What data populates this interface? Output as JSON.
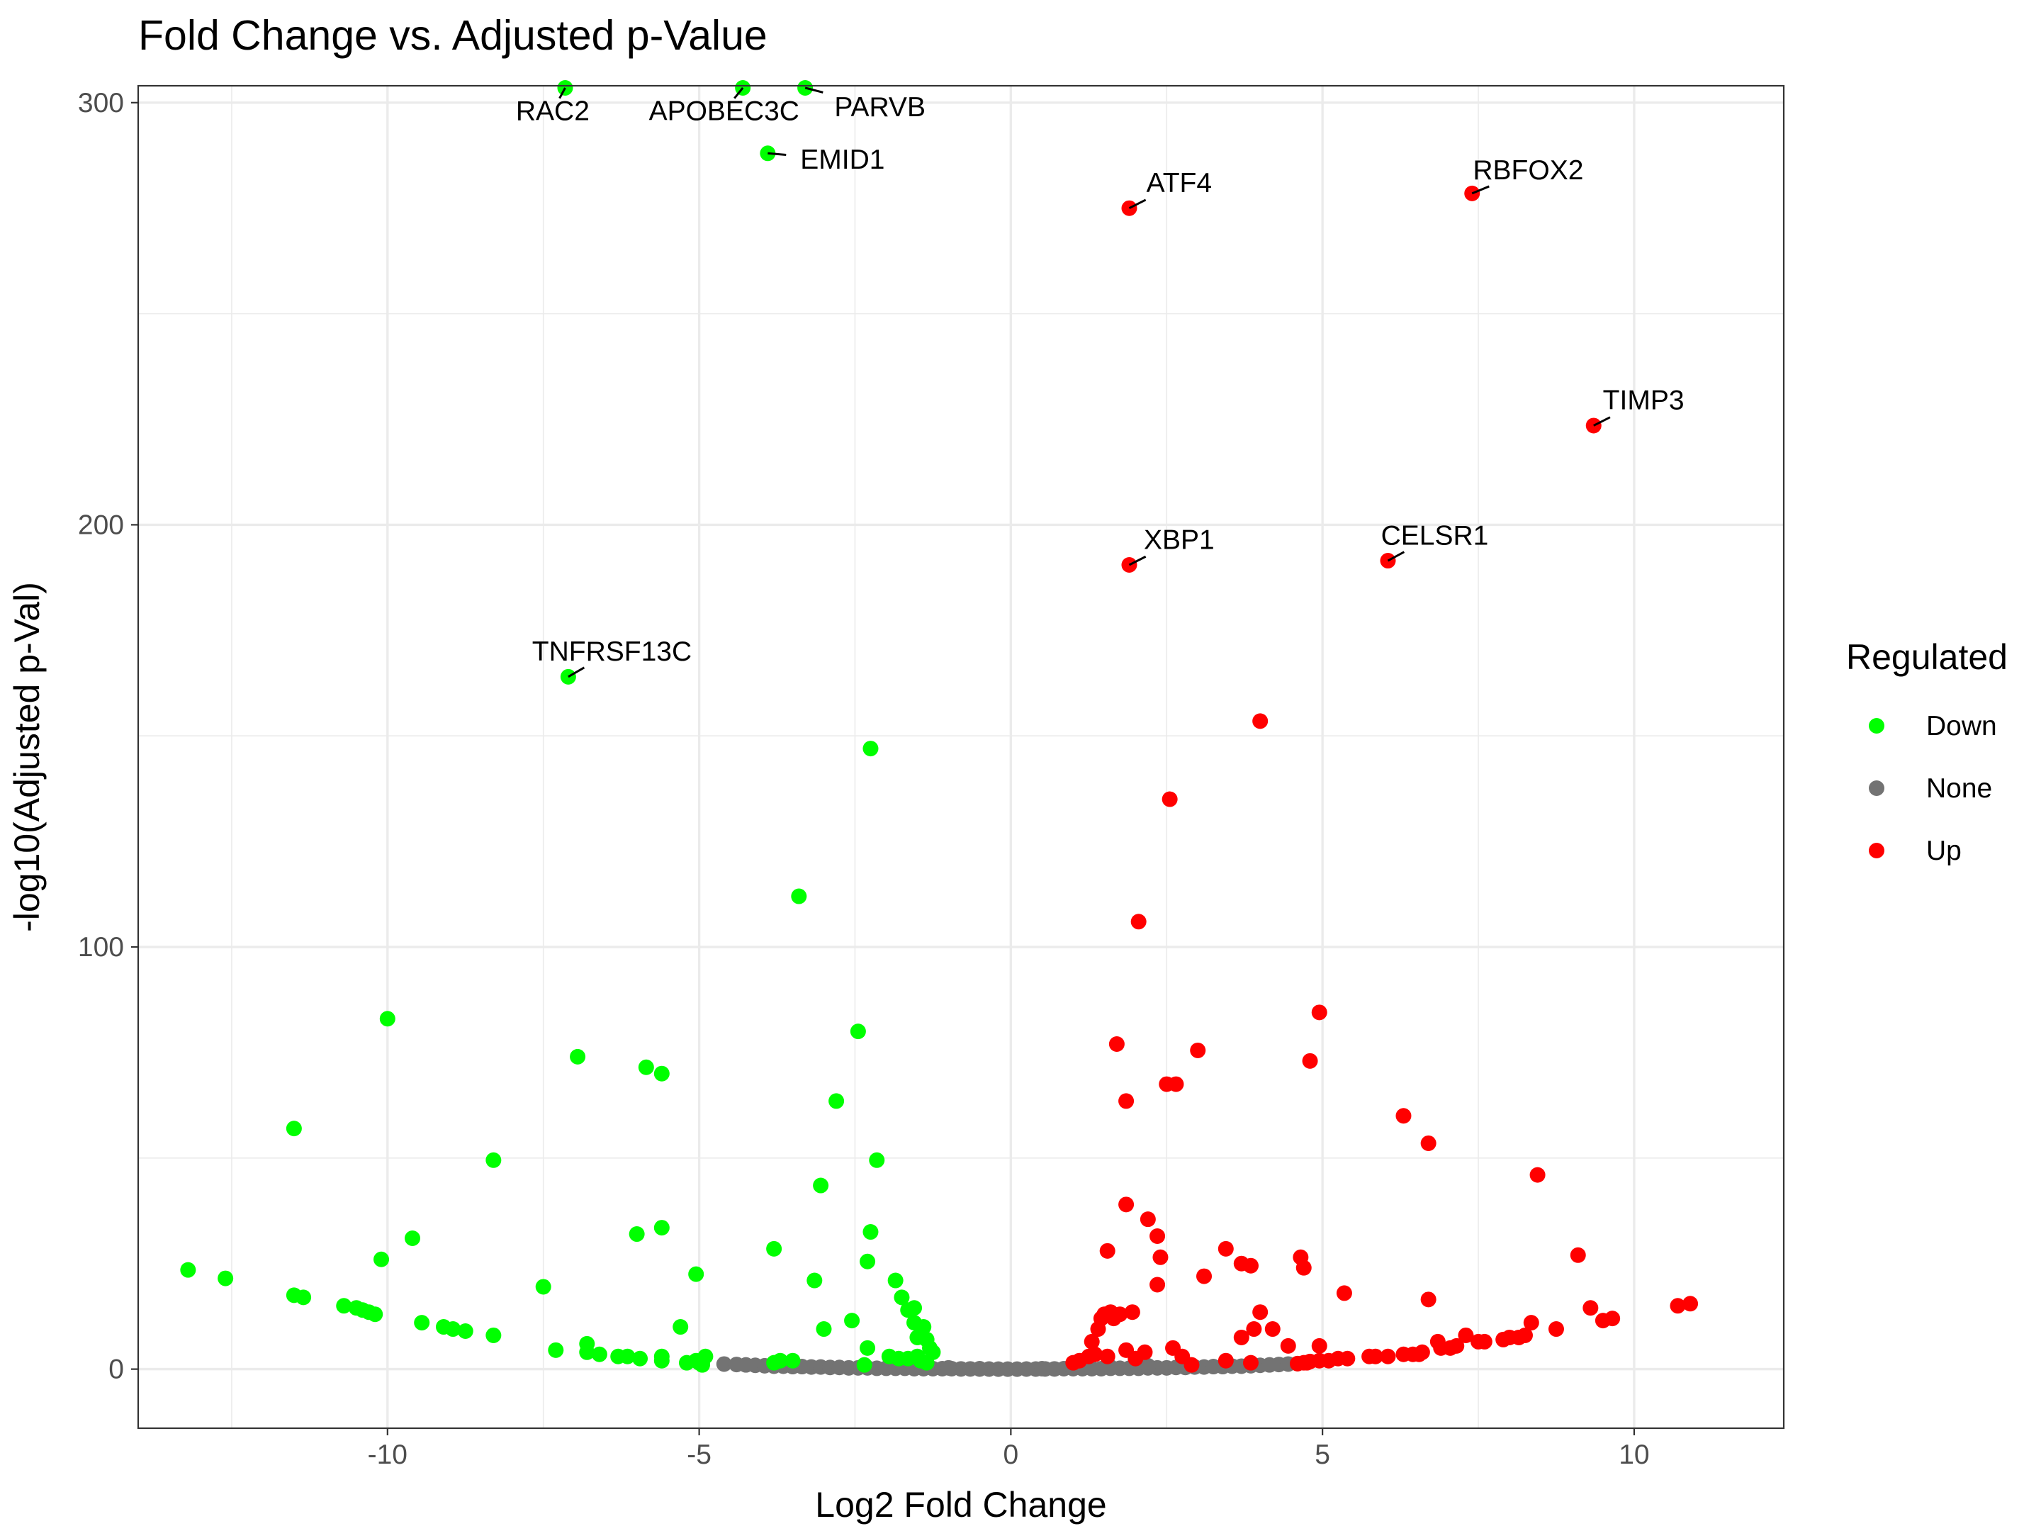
{
  "chart_data": {
    "type": "scatter",
    "title": "Fold Change vs. Adjusted p-Value",
    "xlabel": "Log2 Fold Change",
    "ylabel": "-log10(Adjusted p-Val)",
    "xlim": [
      -14.0,
      12.4
    ],
    "ylim": [
      -14,
      304
    ],
    "xticks": [
      -10,
      -5,
      0,
      5,
      10
    ],
    "yticks": [
      0,
      100,
      200,
      300
    ],
    "grid": true,
    "legend": {
      "title": "Regulated",
      "position": "right",
      "entries": [
        {
          "label": "Down",
          "color": "#00ff00"
        },
        {
          "label": "None",
          "color": "#737373"
        },
        {
          "label": "Up",
          "color": "#ff0000"
        }
      ]
    },
    "series": [
      {
        "name": "Down",
        "color": "#00ff00",
        "points": [
          [
            -7.15,
            303.5
          ],
          [
            -4.3,
            303.5
          ],
          [
            -3.3,
            303.5
          ],
          [
            -3.9,
            288
          ],
          [
            -7.1,
            164
          ],
          [
            -2.25,
            147
          ],
          [
            -3.4,
            112
          ],
          [
            -10.0,
            83
          ],
          [
            -6.95,
            74
          ],
          [
            -5.85,
            71.5
          ],
          [
            -5.6,
            70
          ],
          [
            -2.45,
            80
          ],
          [
            -2.8,
            63.5
          ],
          [
            -11.5,
            57
          ],
          [
            -8.3,
            49.5
          ],
          [
            -2.15,
            49.5
          ],
          [
            -3.05,
            43.5
          ],
          [
            -5.6,
            33.5
          ],
          [
            -6.0,
            32
          ],
          [
            -2.25,
            32.5
          ],
          [
            -9.6,
            31
          ],
          [
            -3.8,
            28.5
          ],
          [
            -10.1,
            26
          ],
          [
            -2.3,
            25.5
          ],
          [
            -13.2,
            23.5
          ],
          [
            -12.6,
            21.5
          ],
          [
            -5.05,
            22.5
          ],
          [
            -3.15,
            21
          ],
          [
            -1.85,
            21
          ],
          [
            -7.5,
            19.5
          ],
          [
            -11.5,
            17.5
          ],
          [
            -11.35,
            17
          ],
          [
            -1.75,
            17
          ],
          [
            -10.7,
            15
          ],
          [
            -10.5,
            14.5
          ],
          [
            -10.4,
            14
          ],
          [
            -10.3,
            13.5
          ],
          [
            -10.2,
            13
          ],
          [
            -1.55,
            14.5
          ],
          [
            -1.65,
            14
          ],
          [
            -2.55,
            11.5
          ],
          [
            -9.45,
            11
          ],
          [
            -9.1,
            10
          ],
          [
            -8.95,
            9.5
          ],
          [
            -8.75,
            9
          ],
          [
            -1.55,
            11
          ],
          [
            -1.4,
            10
          ],
          [
            -5.3,
            10
          ],
          [
            -3.0,
            9.5
          ],
          [
            -8.3,
            8
          ],
          [
            -1.5,
            7.5
          ],
          [
            -1.35,
            7
          ],
          [
            -1.3,
            5
          ],
          [
            -6.8,
            6
          ],
          [
            -7.3,
            4.5
          ],
          [
            -6.8,
            4
          ],
          [
            -6.6,
            3.5
          ],
          [
            -6.3,
            3
          ],
          [
            -6.15,
            3
          ],
          [
            -5.95,
            2.5
          ],
          [
            -5.6,
            3
          ],
          [
            -5.6,
            2
          ],
          [
            -2.3,
            5
          ],
          [
            -4.9,
            3
          ],
          [
            -5.05,
            2
          ],
          [
            -5.2,
            1.5
          ],
          [
            -5.0,
            1.5
          ],
          [
            -4.95,
            1.5
          ],
          [
            -4.95,
            1
          ],
          [
            -3.7,
            2
          ],
          [
            -3.5,
            2
          ],
          [
            -3.8,
            1.5
          ],
          [
            -2.35,
            1
          ],
          [
            -1.95,
            3
          ],
          [
            -1.8,
            2.5
          ],
          [
            -1.65,
            2.5
          ],
          [
            -1.5,
            3
          ],
          [
            -1.25,
            4
          ],
          [
            -1.45,
            2
          ],
          [
            -1.35,
            1.5
          ]
        ]
      },
      {
        "name": "None",
        "color": "#737373",
        "points": [
          [
            -4.6,
            1.2
          ],
          [
            -4.4,
            1.1
          ],
          [
            -4.25,
            1.0
          ],
          [
            -4.1,
            0.9
          ],
          [
            -3.95,
            0.8
          ],
          [
            -3.8,
            0.7
          ],
          [
            -3.65,
            0.7
          ],
          [
            -3.5,
            0.6
          ],
          [
            -3.35,
            0.6
          ],
          [
            -3.2,
            0.5
          ],
          [
            -3.05,
            0.5
          ],
          [
            -2.9,
            0.4
          ],
          [
            -2.75,
            0.4
          ],
          [
            -2.6,
            0.3
          ],
          [
            -2.45,
            0.3
          ],
          [
            -2.3,
            0.3
          ],
          [
            -2.15,
            0.2
          ],
          [
            -2.0,
            0.2
          ],
          [
            -1.85,
            0.2
          ],
          [
            -1.7,
            0.2
          ],
          [
            -1.55,
            0.1
          ],
          [
            -1.4,
            0.1
          ],
          [
            -1.25,
            0.1
          ],
          [
            -1.1,
            0.1
          ],
          [
            -0.95,
            0.1
          ],
          [
            -0.8,
            0.05
          ],
          [
            -0.65,
            0.05
          ],
          [
            -0.5,
            0.02
          ],
          [
            -0.35,
            0.02
          ],
          [
            -0.2,
            0.0
          ],
          [
            -0.05,
            0.0
          ],
          [
            0.1,
            0.0
          ],
          [
            0.25,
            0.02
          ],
          [
            0.4,
            0.02
          ],
          [
            0.55,
            0.05
          ],
          [
            0.7,
            0.05
          ],
          [
            0.85,
            0.1
          ],
          [
            1.0,
            0.1
          ],
          [
            1.15,
            0.1
          ],
          [
            1.3,
            0.1
          ],
          [
            1.45,
            0.1
          ],
          [
            1.6,
            0.2
          ],
          [
            1.75,
            0.2
          ],
          [
            1.9,
            0.2
          ],
          [
            2.05,
            0.2
          ],
          [
            2.2,
            0.3
          ],
          [
            2.35,
            0.3
          ],
          [
            2.5,
            0.3
          ],
          [
            2.65,
            0.4
          ],
          [
            2.8,
            0.4
          ],
          [
            2.95,
            0.5
          ],
          [
            3.1,
            0.5
          ],
          [
            3.25,
            0.6
          ],
          [
            3.4,
            0.6
          ],
          [
            3.55,
            0.7
          ],
          [
            3.7,
            0.7
          ],
          [
            3.85,
            0.8
          ],
          [
            4.0,
            0.9
          ],
          [
            4.15,
            1.0
          ],
          [
            4.3,
            1.1
          ],
          [
            4.45,
            1.2
          ],
          [
            4.6,
            1.3
          ],
          [
            -1.6,
            0.5
          ],
          [
            -1.0,
            0.3
          ],
          [
            -0.5,
            0.1
          ],
          [
            0.5,
            0.1
          ],
          [
            1.0,
            0.3
          ],
          [
            1.6,
            0.5
          ],
          [
            2.2,
            0.8
          ],
          [
            2.8,
            0.9
          ]
        ]
      },
      {
        "name": "Up",
        "color": "#ff0000",
        "points": [
          [
            1.9,
            275
          ],
          [
            7.4,
            278.5
          ],
          [
            9.35,
            223.5
          ],
          [
            1.9,
            190.5
          ],
          [
            6.05,
            191.5
          ],
          [
            4.0,
            153.5
          ],
          [
            2.55,
            135
          ],
          [
            2.05,
            106
          ],
          [
            4.95,
            84.5
          ],
          [
            1.7,
            77
          ],
          [
            3.0,
            75.5
          ],
          [
            4.8,
            73
          ],
          [
            2.5,
            67.5
          ],
          [
            2.65,
            67.5
          ],
          [
            1.85,
            63.5
          ],
          [
            6.3,
            60
          ],
          [
            6.7,
            53.5
          ],
          [
            8.45,
            46
          ],
          [
            1.85,
            39
          ],
          [
            2.2,
            35.5
          ],
          [
            2.35,
            31.5
          ],
          [
            3.45,
            28.5
          ],
          [
            1.55,
            28
          ],
          [
            4.65,
            26.5
          ],
          [
            2.4,
            26.5
          ],
          [
            3.7,
            25
          ],
          [
            3.85,
            24.5
          ],
          [
            4.7,
            24
          ],
          [
            9.1,
            27
          ],
          [
            3.1,
            22
          ],
          [
            2.35,
            20
          ],
          [
            5.35,
            18
          ],
          [
            6.7,
            16.5
          ],
          [
            9.3,
            14.5
          ],
          [
            10.7,
            15
          ],
          [
            10.9,
            15.5
          ],
          [
            1.6,
            13.5
          ],
          [
            1.5,
            13
          ],
          [
            1.75,
            13
          ],
          [
            1.95,
            13.5
          ],
          [
            1.45,
            12
          ],
          [
            1.65,
            12
          ],
          [
            4.0,
            13.5
          ],
          [
            9.5,
            11.5
          ],
          [
            9.65,
            12
          ],
          [
            8.35,
            11
          ],
          [
            1.4,
            9.5
          ],
          [
            3.9,
            9.5
          ],
          [
            4.2,
            9.5
          ],
          [
            8.75,
            9.5
          ],
          [
            1.3,
            6.5
          ],
          [
            3.7,
            7.5
          ],
          [
            4.45,
            5.5
          ],
          [
            7.3,
            8
          ],
          [
            7.5,
            6.5
          ],
          [
            7.6,
            6.5
          ],
          [
            7.9,
            7
          ],
          [
            8.0,
            7.5
          ],
          [
            8.15,
            7.5
          ],
          [
            8.25,
            8
          ],
          [
            6.85,
            6.5
          ],
          [
            6.9,
            5
          ],
          [
            7.05,
            5
          ],
          [
            7.15,
            5.5
          ],
          [
            4.95,
            5.5
          ],
          [
            2.6,
            5
          ],
          [
            2.15,
            4
          ],
          [
            1.85,
            4.5
          ],
          [
            1.35,
            3.5
          ],
          [
            1.25,
            3
          ],
          [
            1.1,
            2
          ],
          [
            1.0,
            1.5
          ],
          [
            2.75,
            3
          ],
          [
            1.55,
            3
          ],
          [
            2.0,
            2.5
          ],
          [
            3.45,
            2
          ],
          [
            3.85,
            1.5
          ],
          [
            4.75,
            1.5
          ],
          [
            4.95,
            2
          ],
          [
            5.1,
            2
          ],
          [
            5.25,
            2.5
          ],
          [
            5.4,
            2.5
          ],
          [
            5.75,
            3
          ],
          [
            5.85,
            3
          ],
          [
            6.05,
            3
          ],
          [
            6.3,
            3.5
          ],
          [
            6.45,
            3.5
          ],
          [
            6.55,
            3.5
          ],
          [
            6.6,
            4
          ],
          [
            4.6,
            1.3
          ],
          [
            4.7,
            1.5
          ],
          [
            4.8,
            1.8
          ],
          [
            2.9,
            1.0
          ]
        ]
      }
    ],
    "annotations": [
      {
        "label": "RAC2",
        "x": -7.15,
        "y": 303.5,
        "tx": -7.35,
        "ty": 298
      },
      {
        "label": "APOBEC3C",
        "x": -4.3,
        "y": 303.5,
        "tx": -4.6,
        "ty": 298
      },
      {
        "label": "PARVB",
        "x": -3.3,
        "y": 303.5,
        "tx": -2.1,
        "ty": 299
      },
      {
        "label": "EMID1",
        "x": -3.9,
        "y": 288,
        "tx": -2.7,
        "ty": 286.5
      },
      {
        "label": "ATF4",
        "x": 1.9,
        "y": 275,
        "tx": 2.7,
        "ty": 281
      },
      {
        "label": "RBFOX2",
        "x": 7.4,
        "y": 278.5,
        "tx": 8.3,
        "ty": 284
      },
      {
        "label": "TIMP3",
        "x": 9.35,
        "y": 223.5,
        "tx": 10.15,
        "ty": 229.5
      },
      {
        "label": "XBP1",
        "x": 1.9,
        "y": 190.5,
        "tx": 2.7,
        "ty": 196.5
      },
      {
        "label": "CELSR1",
        "x": 6.05,
        "y": 191.5,
        "tx": 6.8,
        "ty": 197.5
      },
      {
        "label": "TNFRSF13C",
        "x": -7.1,
        "y": 164,
        "tx": -6.4,
        "ty": 170
      }
    ]
  }
}
